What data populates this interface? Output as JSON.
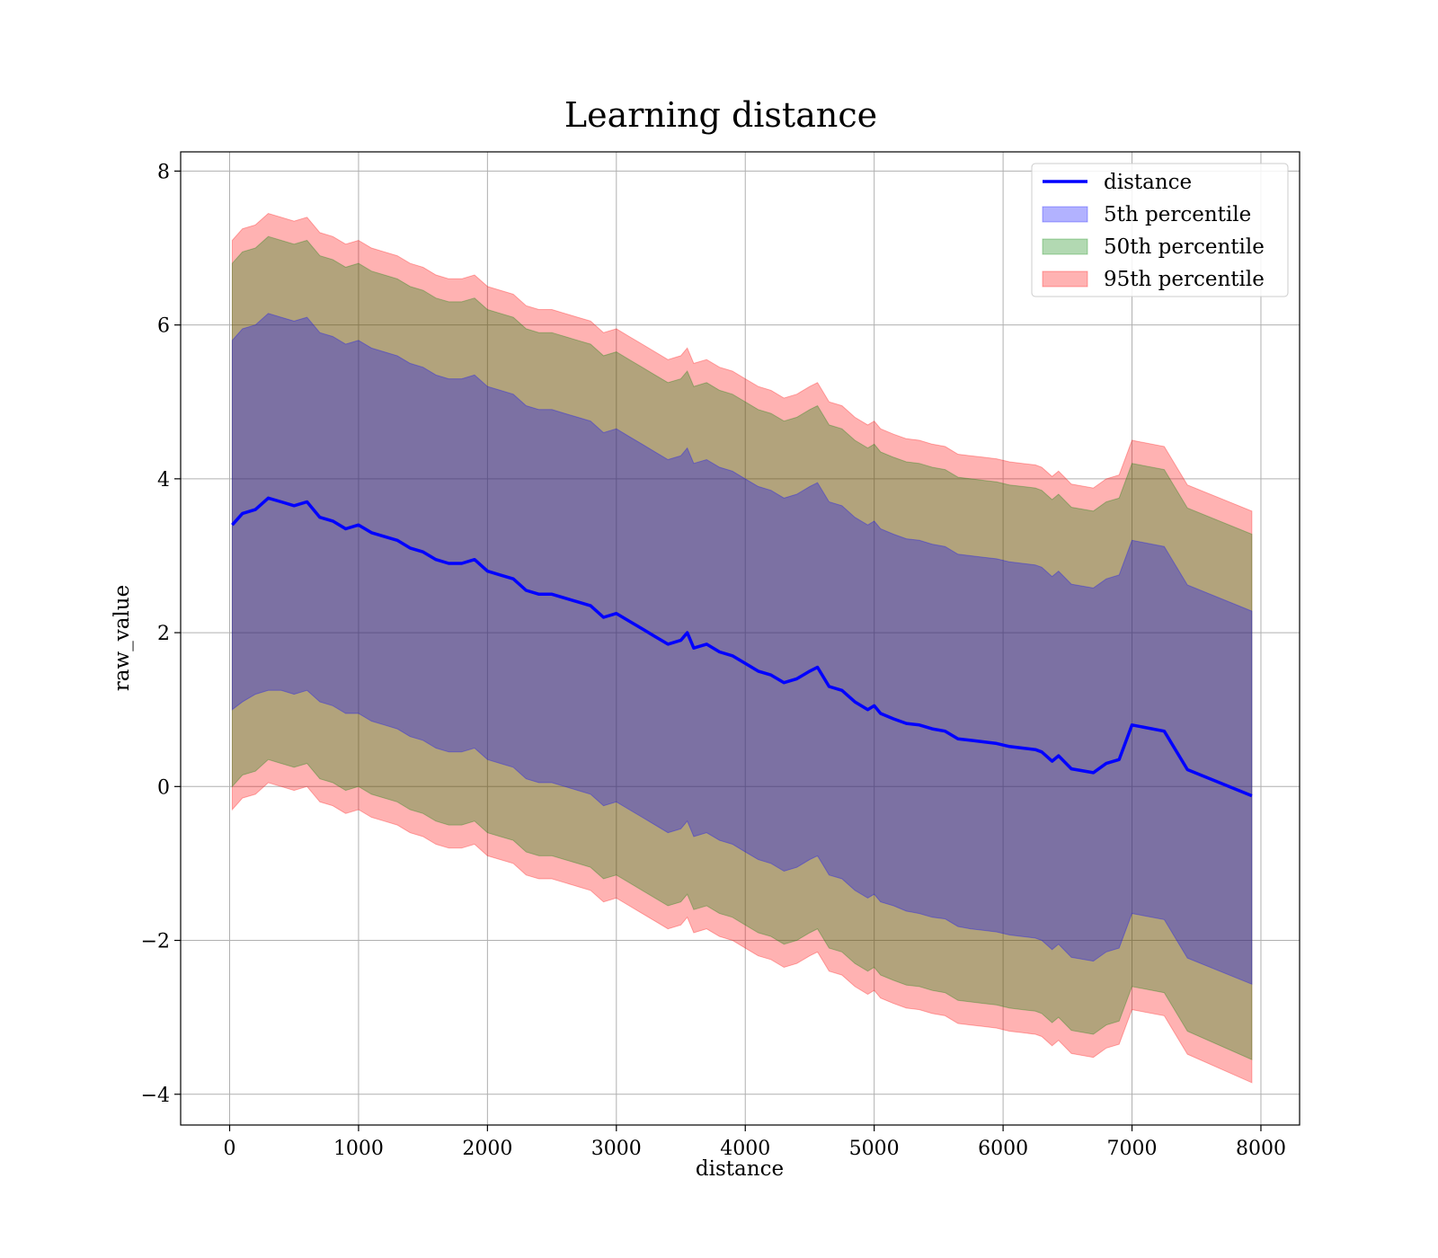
{
  "chart_data": {
    "type": "area",
    "title": "Learning distance",
    "xlabel": "distance",
    "ylabel": "raw_value",
    "xlim": [
      -380,
      8300
    ],
    "ylim": [
      -4.4,
      8.25
    ],
    "x_ticks": [
      0,
      1000,
      2000,
      3000,
      4000,
      5000,
      6000,
      7000,
      8000
    ],
    "x_tick_labels": [
      "0",
      "1000",
      "2000",
      "3000",
      "4000",
      "5000",
      "6000",
      "7000",
      "8000"
    ],
    "y_ticks": [
      -4,
      -2,
      0,
      2,
      4,
      6,
      8
    ],
    "y_tick_labels": [
      "−4",
      "−2",
      "0",
      "2",
      "4",
      "6",
      "8"
    ],
    "grid": true,
    "legend_position": "top-right",
    "colors": {
      "line": "#0000ff",
      "band_5th": "#0000ff",
      "band_50th": "#008000",
      "band_95th": "#ff0000"
    },
    "series": [
      {
        "name": "distance",
        "kind": "line",
        "x": [
          20,
          100,
          200,
          300,
          400,
          500,
          600,
          700,
          800,
          900,
          1000,
          1100,
          1200,
          1300,
          1400,
          1500,
          1600,
          1700,
          1800,
          1900,
          2000,
          2100,
          2200,
          2300,
          2400,
          2500,
          2600,
          2700,
          2800,
          2900,
          3000,
          3100,
          3200,
          3300,
          3400,
          3500,
          3550,
          3600,
          3700,
          3800,
          3900,
          4000,
          4100,
          4200,
          4300,
          4400,
          4500,
          4560,
          4650,
          4750,
          4850,
          4950,
          5000,
          5050,
          5150,
          5250,
          5350,
          5450,
          5550,
          5650,
          5750,
          5850,
          5950,
          6050,
          6150,
          6250,
          6300,
          6380,
          6430,
          6530,
          6700,
          6800,
          6900,
          7000,
          7250,
          7430,
          7930
        ],
        "y": [
          3.4,
          3.55,
          3.6,
          3.75,
          3.7,
          3.65,
          3.7,
          3.5,
          3.45,
          3.35,
          3.4,
          3.3,
          3.25,
          3.2,
          3.1,
          3.05,
          2.95,
          2.9,
          2.9,
          2.95,
          2.8,
          2.75,
          2.7,
          2.55,
          2.5,
          2.5,
          2.45,
          2.4,
          2.35,
          2.2,
          2.25,
          2.15,
          2.05,
          1.95,
          1.85,
          1.9,
          2.0,
          1.8,
          1.85,
          1.75,
          1.7,
          1.6,
          1.5,
          1.45,
          1.35,
          1.4,
          1.5,
          1.55,
          1.3,
          1.25,
          1.1,
          1.0,
          1.05,
          0.95,
          0.88,
          0.82,
          0.8,
          0.75,
          0.72,
          0.62,
          0.6,
          0.58,
          0.56,
          0.52,
          0.5,
          0.48,
          0.45,
          0.33,
          0.4,
          0.23,
          0.18,
          0.3,
          0.35,
          0.8,
          0.72,
          0.22,
          -0.12
        ]
      },
      {
        "name": "5th percentile",
        "kind": "band",
        "x": [
          20,
          100,
          200,
          300,
          400,
          500,
          600,
          700,
          800,
          900,
          1000,
          1100,
          1200,
          1300,
          1400,
          1500,
          1600,
          1700,
          1800,
          1900,
          2000,
          2100,
          2200,
          2300,
          2400,
          2500,
          2600,
          2700,
          2800,
          2900,
          3000,
          3100,
          3200,
          3300,
          3400,
          3500,
          3550,
          3600,
          3700,
          3800,
          3900,
          4000,
          4100,
          4200,
          4300,
          4400,
          4500,
          4560,
          4650,
          4750,
          4850,
          4950,
          5000,
          5050,
          5150,
          5250,
          5350,
          5450,
          5550,
          5650,
          5750,
          5850,
          5950,
          6050,
          6150,
          6250,
          6300,
          6380,
          6430,
          6530,
          6700,
          6800,
          6900,
          7000,
          7250,
          7430,
          7930
        ],
        "lower": [
          1.0,
          1.1,
          1.2,
          1.25,
          1.25,
          1.2,
          1.25,
          1.1,
          1.05,
          0.95,
          0.95,
          0.85,
          0.8,
          0.75,
          0.65,
          0.6,
          0.5,
          0.45,
          0.45,
          0.5,
          0.35,
          0.3,
          0.25,
          0.1,
          0.05,
          0.05,
          0.0,
          -0.05,
          -0.1,
          -0.25,
          -0.2,
          -0.3,
          -0.4,
          -0.5,
          -0.6,
          -0.55,
          -0.45,
          -0.65,
          -0.6,
          -0.7,
          -0.75,
          -0.85,
          -0.95,
          -1.0,
          -1.1,
          -1.05,
          -0.95,
          -0.9,
          -1.15,
          -1.2,
          -1.35,
          -1.45,
          -1.4,
          -1.5,
          -1.55,
          -1.62,
          -1.65,
          -1.7,
          -1.72,
          -1.82,
          -1.85,
          -1.87,
          -1.89,
          -1.93,
          -1.95,
          -1.97,
          -2.0,
          -2.12,
          -2.05,
          -2.22,
          -2.27,
          -2.15,
          -2.1,
          -1.65,
          -1.73,
          -2.23,
          -2.57
        ],
        "upper": [
          5.8,
          5.95,
          6.0,
          6.15,
          6.1,
          6.05,
          6.1,
          5.9,
          5.85,
          5.75,
          5.8,
          5.7,
          5.65,
          5.6,
          5.5,
          5.45,
          5.35,
          5.3,
          5.3,
          5.35,
          5.2,
          5.15,
          5.1,
          4.95,
          4.9,
          4.9,
          4.85,
          4.8,
          4.75,
          4.6,
          4.65,
          4.55,
          4.45,
          4.35,
          4.25,
          4.3,
          4.4,
          4.2,
          4.25,
          4.15,
          4.1,
          4.0,
          3.9,
          3.85,
          3.75,
          3.8,
          3.9,
          3.95,
          3.7,
          3.65,
          3.5,
          3.4,
          3.45,
          3.35,
          3.28,
          3.22,
          3.2,
          3.15,
          3.12,
          3.02,
          3.0,
          2.98,
          2.96,
          2.92,
          2.9,
          2.88,
          2.85,
          2.73,
          2.8,
          2.63,
          2.58,
          2.7,
          2.75,
          3.2,
          3.12,
          2.62,
          2.28
        ]
      },
      {
        "name": "50th percentile",
        "kind": "band",
        "x": [
          20,
          100,
          200,
          300,
          400,
          500,
          600,
          700,
          800,
          900,
          1000,
          1100,
          1200,
          1300,
          1400,
          1500,
          1600,
          1700,
          1800,
          1900,
          2000,
          2100,
          2200,
          2300,
          2400,
          2500,
          2600,
          2700,
          2800,
          2900,
          3000,
          3100,
          3200,
          3300,
          3400,
          3500,
          3550,
          3600,
          3700,
          3800,
          3900,
          4000,
          4100,
          4200,
          4300,
          4400,
          4500,
          4560,
          4650,
          4750,
          4850,
          4950,
          5000,
          5050,
          5150,
          5250,
          5350,
          5450,
          5550,
          5650,
          5750,
          5850,
          5950,
          6050,
          6150,
          6250,
          6300,
          6380,
          6430,
          6530,
          6700,
          6800,
          6900,
          7000,
          7250,
          7430,
          7930
        ],
        "lower": [
          0.0,
          0.15,
          0.2,
          0.35,
          0.3,
          0.25,
          0.3,
          0.1,
          0.05,
          -0.05,
          0.0,
          -0.1,
          -0.15,
          -0.2,
          -0.3,
          -0.35,
          -0.45,
          -0.5,
          -0.5,
          -0.45,
          -0.6,
          -0.65,
          -0.7,
          -0.85,
          -0.9,
          -0.9,
          -0.95,
          -1.0,
          -1.05,
          -1.2,
          -1.15,
          -1.25,
          -1.35,
          -1.45,
          -1.55,
          -1.5,
          -1.4,
          -1.6,
          -1.55,
          -1.65,
          -1.7,
          -1.8,
          -1.9,
          -1.95,
          -2.05,
          -2.0,
          -1.9,
          -1.85,
          -2.1,
          -2.15,
          -2.3,
          -2.4,
          -2.35,
          -2.45,
          -2.52,
          -2.58,
          -2.6,
          -2.65,
          -2.68,
          -2.78,
          -2.8,
          -2.82,
          -2.84,
          -2.88,
          -2.9,
          -2.92,
          -2.95,
          -3.07,
          -3.0,
          -3.17,
          -3.22,
          -3.1,
          -3.05,
          -2.6,
          -2.68,
          -3.18,
          -3.55
        ],
        "upper": [
          6.8,
          6.95,
          7.0,
          7.15,
          7.1,
          7.05,
          7.1,
          6.9,
          6.85,
          6.75,
          6.8,
          6.7,
          6.65,
          6.6,
          6.5,
          6.45,
          6.35,
          6.3,
          6.3,
          6.35,
          6.2,
          6.15,
          6.1,
          5.95,
          5.9,
          5.9,
          5.85,
          5.8,
          5.75,
          5.6,
          5.65,
          5.55,
          5.45,
          5.35,
          5.25,
          5.3,
          5.4,
          5.2,
          5.25,
          5.15,
          5.1,
          5.0,
          4.9,
          4.85,
          4.75,
          4.8,
          4.9,
          4.95,
          4.7,
          4.65,
          4.5,
          4.4,
          4.45,
          4.35,
          4.28,
          4.22,
          4.2,
          4.15,
          4.12,
          4.02,
          4.0,
          3.98,
          3.96,
          3.92,
          3.9,
          3.88,
          3.85,
          3.73,
          3.8,
          3.63,
          3.58,
          3.7,
          3.75,
          4.2,
          4.12,
          3.62,
          3.28
        ]
      },
      {
        "name": "95th percentile",
        "kind": "band",
        "x": [
          20,
          100,
          200,
          300,
          400,
          500,
          600,
          700,
          800,
          900,
          1000,
          1100,
          1200,
          1300,
          1400,
          1500,
          1600,
          1700,
          1800,
          1900,
          2000,
          2100,
          2200,
          2300,
          2400,
          2500,
          2600,
          2700,
          2800,
          2900,
          3000,
          3100,
          3200,
          3300,
          3400,
          3500,
          3550,
          3600,
          3700,
          3800,
          3900,
          4000,
          4100,
          4200,
          4300,
          4400,
          4500,
          4560,
          4650,
          4750,
          4850,
          4950,
          5000,
          5050,
          5150,
          5250,
          5350,
          5450,
          5550,
          5650,
          5750,
          5850,
          5950,
          6050,
          6150,
          6250,
          6300,
          6380,
          6430,
          6530,
          6700,
          6800,
          6900,
          7000,
          7250,
          7430,
          7930
        ],
        "lower": [
          -0.3,
          -0.15,
          -0.1,
          0.05,
          0.0,
          -0.05,
          0.0,
          -0.2,
          -0.25,
          -0.35,
          -0.3,
          -0.4,
          -0.45,
          -0.5,
          -0.6,
          -0.65,
          -0.75,
          -0.8,
          -0.8,
          -0.75,
          -0.9,
          -0.95,
          -1.0,
          -1.15,
          -1.2,
          -1.2,
          -1.25,
          -1.3,
          -1.35,
          -1.5,
          -1.45,
          -1.55,
          -1.65,
          -1.75,
          -1.85,
          -1.8,
          -1.7,
          -1.9,
          -1.85,
          -1.95,
          -2.0,
          -2.1,
          -2.2,
          -2.25,
          -2.35,
          -2.3,
          -2.2,
          -2.15,
          -2.4,
          -2.45,
          -2.6,
          -2.7,
          -2.65,
          -2.75,
          -2.82,
          -2.88,
          -2.9,
          -2.95,
          -2.98,
          -3.08,
          -3.1,
          -3.12,
          -3.14,
          -3.18,
          -3.2,
          -3.22,
          -3.25,
          -3.37,
          -3.3,
          -3.47,
          -3.52,
          -3.4,
          -3.35,
          -2.9,
          -2.98,
          -3.48,
          -3.85
        ],
        "upper": [
          7.1,
          7.25,
          7.3,
          7.45,
          7.4,
          7.35,
          7.4,
          7.2,
          7.15,
          7.05,
          7.1,
          7.0,
          6.95,
          6.9,
          6.8,
          6.75,
          6.65,
          6.6,
          6.6,
          6.65,
          6.5,
          6.45,
          6.4,
          6.25,
          6.2,
          6.2,
          6.15,
          6.1,
          6.05,
          5.9,
          5.95,
          5.85,
          5.75,
          5.65,
          5.55,
          5.6,
          5.7,
          5.5,
          5.55,
          5.45,
          5.4,
          5.3,
          5.2,
          5.15,
          5.05,
          5.1,
          5.2,
          5.25,
          5.0,
          4.95,
          4.8,
          4.7,
          4.75,
          4.65,
          4.58,
          4.52,
          4.5,
          4.45,
          4.42,
          4.32,
          4.3,
          4.28,
          4.26,
          4.22,
          4.2,
          4.18,
          4.15,
          4.03,
          4.1,
          3.93,
          3.88,
          4.0,
          4.05,
          4.5,
          4.42,
          3.92,
          3.58
        ]
      }
    ]
  }
}
